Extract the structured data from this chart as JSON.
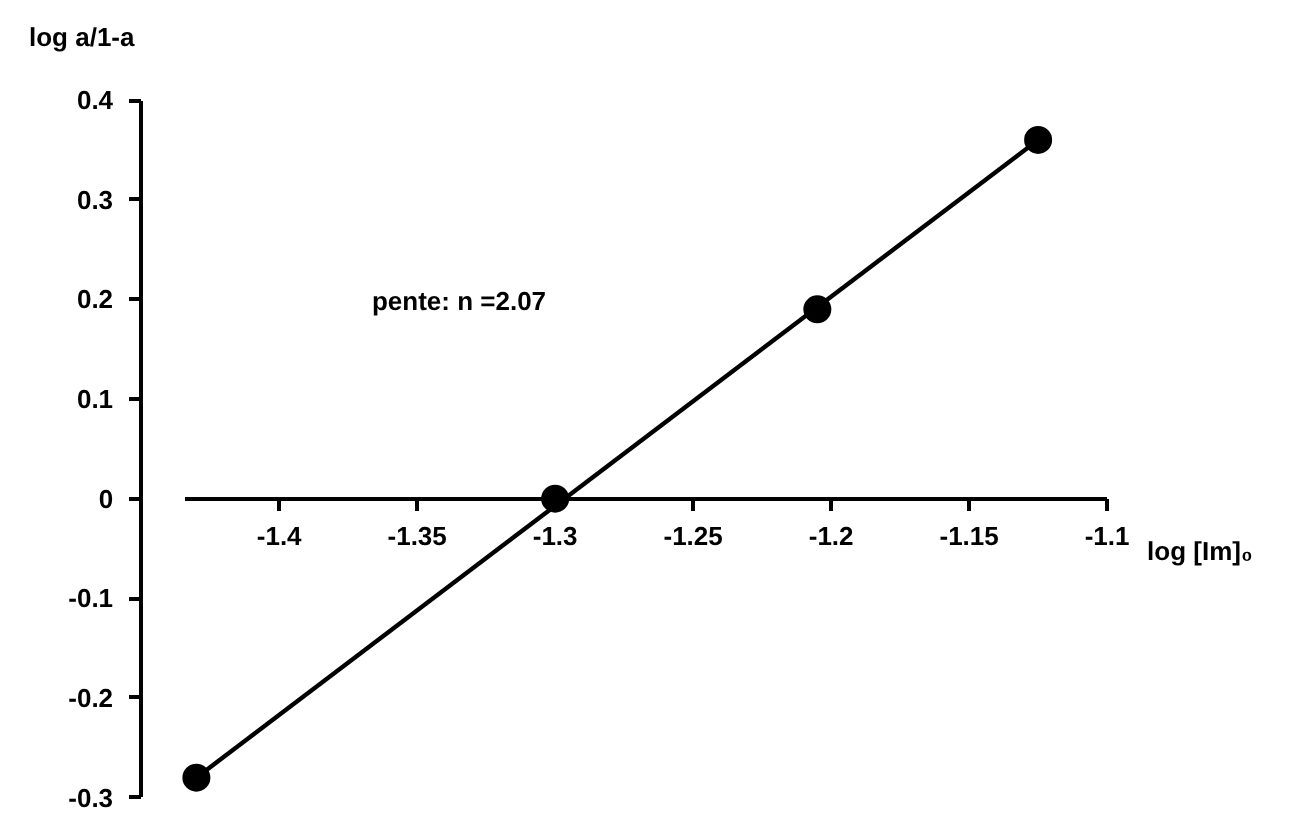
{
  "chart_data": {
    "type": "scatter",
    "xlabel": "log [Im]₀",
    "ylabel": "log a/1-a",
    "annotations": [
      "pente: n =2.07"
    ],
    "xlim": [
      -1.434,
      -1.1
    ],
    "ylim": [
      -0.3,
      0.4
    ],
    "xticks": [
      -1.4,
      -1.35,
      -1.3,
      -1.25,
      -1.2,
      -1.15,
      -1.1
    ],
    "yticks": [
      -0.3,
      -0.2,
      -0.1,
      0,
      0.1,
      0.2,
      0.3,
      0.4
    ],
    "grid": false,
    "marker": "circle",
    "line_style": "solid",
    "series": [
      {
        "type": "line",
        "marker": "none",
        "color": "#000000",
        "x": [
          -1.43,
          -1.125
        ],
        "values": [
          -0.28,
          0.36
        ]
      },
      {
        "color": "#000000",
        "x": [
          -1.43,
          -1.3,
          -1.205,
          -1.125
        ],
        "values": [
          -0.28,
          0,
          0.19,
          0.36
        ]
      }
    ]
  }
}
